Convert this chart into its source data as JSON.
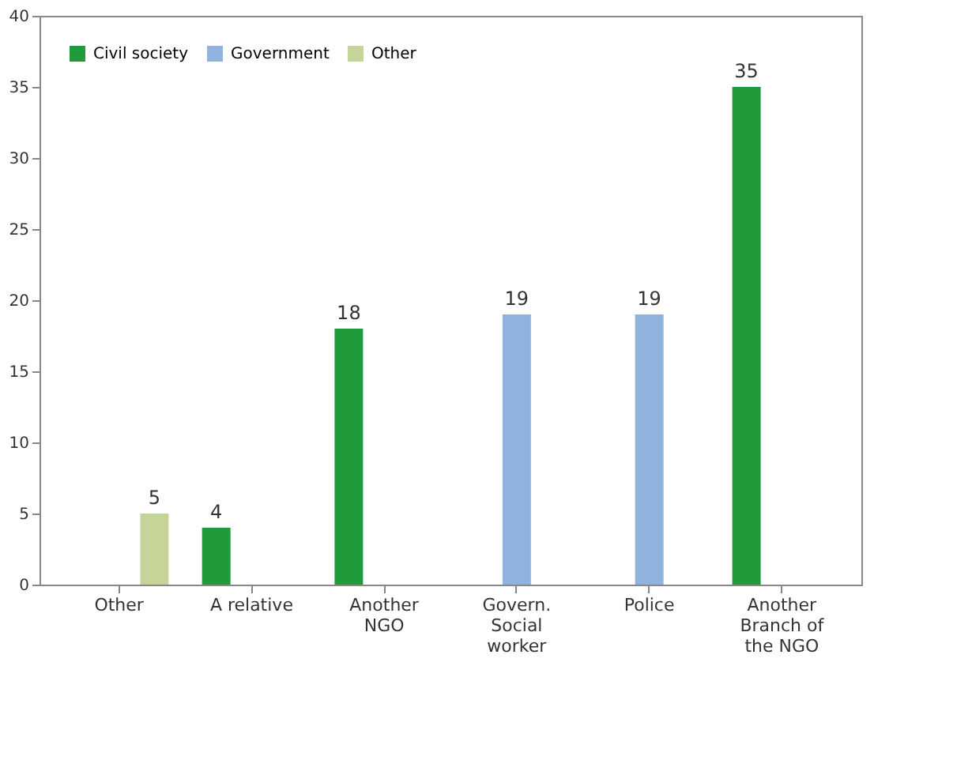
{
  "chart_data": {
    "type": "bar",
    "categories": [
      "Other",
      "A relative",
      "Another NGO",
      "Govern. Social worker",
      "Police",
      "Another Branch of the NGO"
    ],
    "series": [
      {
        "name": "Civil society",
        "color": "#1f9b3c",
        "values": [
          null,
          4,
          18,
          null,
          null,
          35
        ]
      },
      {
        "name": "Government",
        "color": "#8fb3dd",
        "values": [
          null,
          null,
          null,
          19,
          19,
          null
        ]
      },
      {
        "name": "Other",
        "color": "#c5d59a",
        "values": [
          5,
          null,
          null,
          null,
          null,
          null
        ]
      }
    ],
    "ylim": [
      0,
      40
    ],
    "yticks": [
      0,
      5,
      10,
      15,
      20,
      25,
      30,
      35,
      40
    ],
    "grid": false,
    "legend": "top left",
    "data_labels": true
  }
}
